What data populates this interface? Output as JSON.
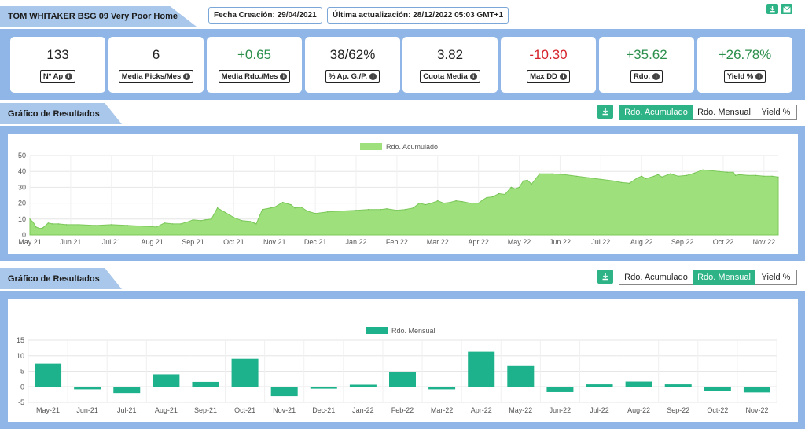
{
  "header": {
    "title": "TOM WHITAKER BSG 09 Very Poor Home",
    "created": "Fecha Creación: 29/04/2021",
    "updated": "Última actualización: 28/12/2022 05:03 GMT+1",
    "download_icon": "download-icon",
    "mail_icon": "envelope-icon"
  },
  "kpis": [
    {
      "value": "133",
      "label": "Nº Ap",
      "tone": "neu"
    },
    {
      "value": "6",
      "label": "Media Picks/Mes",
      "tone": "neu"
    },
    {
      "value": "+0.65",
      "label": "Media Rdo./Mes",
      "tone": "pos"
    },
    {
      "value": "38/62%",
      "label": "% Ap. G./P.",
      "tone": "neu"
    },
    {
      "value": "3.82",
      "label": "Cuota Media",
      "tone": "neu"
    },
    {
      "value": "-10.30",
      "label": "Max DD",
      "tone": "neg"
    },
    {
      "value": "+35.62",
      "label": "Rdo.",
      "tone": "pos"
    },
    {
      "value": "+26.78%",
      "label": "Yield %",
      "tone": "pos"
    }
  ],
  "section1": {
    "title": "Gráfico de Resultados",
    "tabs": [
      "Rdo. Acumulado",
      "Rdo. Mensual",
      "Yield %"
    ],
    "active_tab": 0
  },
  "section2": {
    "title": "Gráfico de Resultados",
    "tabs": [
      "Rdo. Acumulado",
      "Rdo. Mensual",
      "Yield %"
    ],
    "active_tab": 1
  },
  "colors": {
    "accent": "#2db386",
    "panel": "#8fb6e6",
    "area": "#9de07c",
    "bar": "#1db28c"
  },
  "chart_data": [
    {
      "type": "area",
      "legend": [
        "Rdo. Acumulado"
      ],
      "ylim": [
        0,
        50
      ],
      "yticks": [
        0,
        10,
        20,
        30,
        40,
        50
      ],
      "grid": true,
      "legend_position": "top",
      "xticks": [
        {
          "label": "May 21",
          "x": 0
        },
        {
          "label": "Jun 21",
          "x": 1
        },
        {
          "label": "Jul 21",
          "x": 2
        },
        {
          "label": "Aug 21",
          "x": 3
        },
        {
          "label": "Sep 21",
          "x": 4
        },
        {
          "label": "Oct 21",
          "x": 5
        },
        {
          "label": "Nov 21",
          "x": 6
        },
        {
          "label": "Dec 21",
          "x": 7
        },
        {
          "label": "Jan 22",
          "x": 8
        },
        {
          "label": "Feb 22",
          "x": 9
        },
        {
          "label": "Mar 22",
          "x": 10
        },
        {
          "label": "Apr 22",
          "x": 11
        },
        {
          "label": "May 22",
          "x": 12
        },
        {
          "label": "Jun 22",
          "x": 13
        },
        {
          "label": "Jul 22",
          "x": 14
        },
        {
          "label": "Aug 22",
          "x": 15
        },
        {
          "label": "Sep 22",
          "x": 16
        },
        {
          "label": "Oct 22",
          "x": 17
        },
        {
          "label": "Nov 22",
          "x": 18
        }
      ],
      "x": [
        0,
        0.08,
        0.15,
        0.25,
        0.32,
        0.45,
        0.55,
        0.7,
        0.9,
        1.2,
        1.6,
        2.0,
        2.4,
        2.8,
        3.1,
        3.3,
        3.5,
        3.7,
        3.9,
        4.0,
        4.2,
        4.3,
        4.45,
        4.6,
        4.8,
        5.0,
        5.2,
        5.4,
        5.5,
        5.55,
        5.7,
        5.9,
        6.0,
        6.2,
        6.4,
        6.5,
        6.65,
        6.8,
        7.0,
        7.3,
        7.6,
        8.0,
        8.3,
        8.6,
        8.75,
        9.0,
        9.2,
        9.4,
        9.55,
        9.7,
        9.85,
        10.0,
        10.15,
        10.3,
        10.45,
        10.6,
        10.8,
        11.0,
        11.1,
        11.2,
        11.35,
        11.5,
        11.65,
        11.8,
        11.9,
        12.0,
        12.1,
        12.2,
        12.3,
        12.5,
        12.8,
        13.1,
        13.4,
        13.7,
        14.0,
        14.3,
        14.5,
        14.7,
        14.9,
        15.0,
        15.1,
        15.3,
        15.4,
        15.5,
        15.7,
        15.9,
        16.1,
        16.3,
        16.5,
        16.7,
        16.9,
        17.1,
        17.25,
        17.3,
        17.4,
        17.6,
        17.8,
        18.0,
        18.2,
        18.35
      ],
      "y": [
        10,
        8,
        5,
        4,
        4.5,
        7.5,
        7,
        7,
        6.5,
        6.5,
        6,
        6.5,
        6,
        5.5,
        5,
        7.5,
        7,
        7,
        8.5,
        9.5,
        9,
        9.5,
        10,
        17,
        14,
        11,
        9,
        8.5,
        7.5,
        7,
        16,
        17,
        17.5,
        20.5,
        19,
        17,
        17.5,
        15,
        13.5,
        14.5,
        15,
        15.5,
        16,
        16,
        16.5,
        15.5,
        16,
        17,
        20,
        19,
        20,
        21.5,
        20,
        20.5,
        21.5,
        21,
        20,
        20,
        22,
        23.5,
        24,
        26,
        25.5,
        30,
        29,
        30,
        34,
        34.5,
        32,
        38.5,
        38.5,
        38,
        37,
        36,
        35,
        34,
        33,
        32.5,
        36,
        37,
        35.5,
        37,
        38,
        36.5,
        38.5,
        37,
        37.5,
        39,
        41,
        40.5,
        40,
        39.5,
        39.5,
        37.5,
        38,
        37.5,
        37.5,
        37,
        37,
        36.5
      ]
    },
    {
      "type": "bar",
      "legend": [
        "Rdo. Mensual"
      ],
      "ylim": [
        -5,
        15
      ],
      "yticks": [
        -5,
        0,
        5,
        10,
        15
      ],
      "grid": true,
      "legend_position": "top",
      "categories": [
        "May-21",
        "Jun-21",
        "Jul-21",
        "Aug-21",
        "Sep-21",
        "Oct-21",
        "Nov-21",
        "Dec-21",
        "Jan-22",
        "Feb-22",
        "Mar-22",
        "Apr-22",
        "May-22",
        "Jun-22",
        "Jul-22",
        "Aug-22",
        "Sep-22",
        "Oct-22",
        "Nov-22"
      ],
      "values": [
        7.5,
        -0.8,
        -2,
        4,
        1.6,
        9,
        -3,
        -0.6,
        0.7,
        4.8,
        -0.8,
        11.3,
        6.7,
        -1.7,
        0.8,
        1.7,
        0.8,
        -1.3,
        -1.8
      ]
    }
  ]
}
